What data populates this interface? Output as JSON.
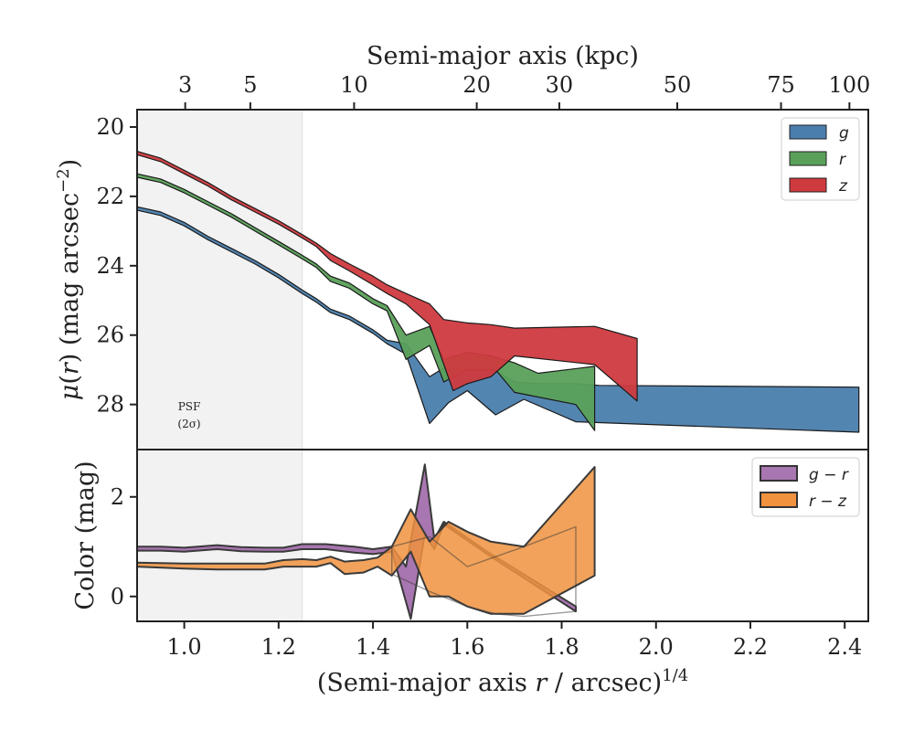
{
  "chart_data": [
    {
      "type": "area",
      "panel": "surface-brightness",
      "ylabel": "μ(r) (mag arcsec⁻²)",
      "ylabel_parts": {
        "sym": "μ",
        "mid": "(",
        "var": "r",
        "rest": ") (mag arcsec",
        "sup": "−2",
        "end": ")"
      },
      "xlim": [
        0.9,
        2.45
      ],
      "ylim": [
        29.3,
        19.5
      ],
      "y_inverted": true,
      "yticks": [
        20,
        22,
        24,
        26,
        28
      ],
      "top_xlabel": "Semi-major axis (kpc)",
      "top_xticks": [
        {
          "label": "3",
          "x": 1.002
        },
        {
          "label": "5",
          "x": 1.14
        },
        {
          "label": "10",
          "x": 1.36
        },
        {
          "label": "20",
          "x": 1.62
        },
        {
          "label": "30",
          "x": 1.795
        },
        {
          "label": "50",
          "x": 2.045
        },
        {
          "label": "75",
          "x": 2.265
        },
        {
          "label": "100",
          "x": 2.41
        }
      ],
      "psf_region": [
        0.9,
        1.25
      ],
      "psf_label": [
        "PSF",
        "(2σ)"
      ],
      "legend_position": "upper-right",
      "series": [
        {
          "name": "g",
          "color": "#4a7ead",
          "upper": [
            [
              0.9,
              22.3
            ],
            [
              0.95,
              22.45
            ],
            [
              1.0,
              22.75
            ],
            [
              1.05,
              23.15
            ],
            [
              1.1,
              23.5
            ],
            [
              1.15,
              23.85
            ],
            [
              1.2,
              24.25
            ],
            [
              1.25,
              24.7
            ],
            [
              1.28,
              24.95
            ],
            [
              1.31,
              25.25
            ],
            [
              1.35,
              25.45
            ],
            [
              1.4,
              25.85
            ],
            [
              1.43,
              26.15
            ],
            [
              1.47,
              26.25
            ],
            [
              1.52,
              27.2
            ],
            [
              1.55,
              26.95
            ],
            [
              1.6,
              27.0
            ],
            [
              1.65,
              26.95
            ],
            [
              1.7,
              27.35
            ],
            [
              1.75,
              27.4
            ],
            [
              1.83,
              27.4
            ],
            [
              1.88,
              27.45
            ],
            [
              2.43,
              27.5
            ]
          ],
          "lower": [
            [
              0.9,
              22.4
            ],
            [
              0.95,
              22.55
            ],
            [
              1.0,
              22.85
            ],
            [
              1.05,
              23.25
            ],
            [
              1.1,
              23.6
            ],
            [
              1.15,
              23.95
            ],
            [
              1.2,
              24.35
            ],
            [
              1.25,
              24.8
            ],
            [
              1.28,
              25.05
            ],
            [
              1.31,
              25.35
            ],
            [
              1.35,
              25.55
            ],
            [
              1.4,
              25.95
            ],
            [
              1.43,
              26.25
            ],
            [
              1.47,
              26.55
            ],
            [
              1.52,
              28.55
            ],
            [
              1.56,
              27.95
            ],
            [
              1.6,
              27.6
            ],
            [
              1.66,
              28.3
            ],
            [
              1.72,
              27.85
            ],
            [
              1.83,
              28.5
            ],
            [
              2.43,
              28.8
            ]
          ]
        },
        {
          "name": "r",
          "color": "#5aa05a",
          "upper": [
            [
              0.9,
              21.35
            ],
            [
              0.95,
              21.5
            ],
            [
              1.0,
              21.8
            ],
            [
              1.05,
              22.15
            ],
            [
              1.1,
              22.5
            ],
            [
              1.15,
              22.9
            ],
            [
              1.2,
              23.3
            ],
            [
              1.25,
              23.7
            ],
            [
              1.28,
              23.95
            ],
            [
              1.31,
              24.3
            ],
            [
              1.35,
              24.5
            ],
            [
              1.4,
              24.95
            ],
            [
              1.43,
              25.15
            ],
            [
              1.47,
              26.0
            ],
            [
              1.52,
              25.75
            ],
            [
              1.55,
              26.7
            ],
            [
              1.6,
              26.5
            ],
            [
              1.65,
              26.6
            ],
            [
              1.7,
              26.8
            ],
            [
              1.75,
              27.1
            ],
            [
              1.87,
              26.9
            ]
          ],
          "lower": [
            [
              0.9,
              21.45
            ],
            [
              0.95,
              21.6
            ],
            [
              1.0,
              21.9
            ],
            [
              1.05,
              22.25
            ],
            [
              1.1,
              22.6
            ],
            [
              1.15,
              23.0
            ],
            [
              1.2,
              23.4
            ],
            [
              1.25,
              23.8
            ],
            [
              1.28,
              24.05
            ],
            [
              1.31,
              24.45
            ],
            [
              1.35,
              24.65
            ],
            [
              1.4,
              25.1
            ],
            [
              1.43,
              25.3
            ],
            [
              1.47,
              26.7
            ],
            [
              1.52,
              26.3
            ],
            [
              1.55,
              27.35
            ],
            [
              1.6,
              27.0
            ],
            [
              1.66,
              27.0
            ],
            [
              1.7,
              27.65
            ],
            [
              1.83,
              28.0
            ],
            [
              1.87,
              28.75
            ]
          ]
        },
        {
          "name": "z",
          "color": "#cf3a3f",
          "upper": [
            [
              0.9,
              20.7
            ],
            [
              0.95,
              20.9
            ],
            [
              1.0,
              21.25
            ],
            [
              1.05,
              21.6
            ],
            [
              1.1,
              22.0
            ],
            [
              1.15,
              22.35
            ],
            [
              1.2,
              22.7
            ],
            [
              1.25,
              23.1
            ],
            [
              1.28,
              23.35
            ],
            [
              1.31,
              23.65
            ],
            [
              1.35,
              23.95
            ],
            [
              1.4,
              24.3
            ],
            [
              1.43,
              24.55
            ],
            [
              1.47,
              24.8
            ],
            [
              1.52,
              25.1
            ],
            [
              1.55,
              25.55
            ],
            [
              1.6,
              25.65
            ],
            [
              1.65,
              25.7
            ],
            [
              1.7,
              25.8
            ],
            [
              1.87,
              25.75
            ],
            [
              1.96,
              26.1
            ]
          ],
          "lower": [
            [
              0.9,
              20.8
            ],
            [
              0.95,
              21.0
            ],
            [
              1.0,
              21.35
            ],
            [
              1.05,
              21.7
            ],
            [
              1.1,
              22.1
            ],
            [
              1.15,
              22.45
            ],
            [
              1.2,
              22.8
            ],
            [
              1.25,
              23.2
            ],
            [
              1.28,
              23.45
            ],
            [
              1.31,
              23.85
            ],
            [
              1.35,
              24.15
            ],
            [
              1.4,
              24.55
            ],
            [
              1.43,
              24.8
            ],
            [
              1.47,
              25.1
            ],
            [
              1.52,
              25.7
            ],
            [
              1.57,
              27.6
            ],
            [
              1.6,
              27.4
            ],
            [
              1.65,
              27.2
            ],
            [
              1.7,
              26.6
            ],
            [
              1.87,
              26.85
            ],
            [
              1.96,
              27.9
            ]
          ]
        }
      ]
    },
    {
      "type": "area",
      "panel": "color-profile",
      "xlabel_parts": {
        "pre": "(Semi-major axis ",
        "var": "r",
        "post": " / arcsec)",
        "sup": "1/4"
      },
      "ylabel": "Color (mag)",
      "xlim": [
        0.9,
        2.45
      ],
      "xticks": [
        1.0,
        1.2,
        1.4,
        1.6,
        1.8,
        2.0,
        2.2,
        2.4
      ],
      "xtick_labels": [
        "1.0",
        "1.2",
        "1.4",
        "1.6",
        "1.8",
        "2.0",
        "2.2",
        "2.4"
      ],
      "ylim": [
        -0.5,
        2.95
      ],
      "yticks": [
        0,
        2
      ],
      "ytick_labels": [
        "0",
        "2"
      ],
      "legend_position": "upper-right",
      "series": [
        {
          "name": "g − r",
          "color": "#a876b0",
          "upper": [
            [
              0.9,
              1.0
            ],
            [
              0.95,
              1.0
            ],
            [
              1.0,
              0.98
            ],
            [
              1.07,
              1.03
            ],
            [
              1.12,
              0.99
            ],
            [
              1.17,
              0.98
            ],
            [
              1.21,
              0.98
            ],
            [
              1.25,
              1.05
            ],
            [
              1.3,
              1.05
            ],
            [
              1.36,
              1.0
            ],
            [
              1.4,
              0.95
            ],
            [
              1.44,
              1.0
            ],
            [
              1.47,
              0.6
            ],
            [
              1.51,
              2.65
            ],
            [
              1.53,
              1.15
            ],
            [
              1.55,
              1.5
            ],
            [
              1.65,
              0.85
            ],
            [
              1.83,
              -0.2
            ]
          ],
          "lower": [
            [
              0.9,
              0.92
            ],
            [
              0.95,
              0.92
            ],
            [
              1.0,
              0.9
            ],
            [
              1.07,
              0.95
            ],
            [
              1.12,
              0.91
            ],
            [
              1.17,
              0.9
            ],
            [
              1.21,
              0.9
            ],
            [
              1.25,
              0.95
            ],
            [
              1.3,
              0.95
            ],
            [
              1.36,
              0.88
            ],
            [
              1.4,
              0.85
            ],
            [
              1.44,
              0.9
            ],
            [
              1.48,
              -0.45
            ],
            [
              1.51,
              1.25
            ],
            [
              1.53,
              0.95
            ],
            [
              1.55,
              1.45
            ],
            [
              1.65,
              0.8
            ],
            [
              1.83,
              -0.3
            ]
          ]
        },
        {
          "name": "r − z",
          "color": "#f0923e",
          "upper": [
            [
              0.9,
              0.68
            ],
            [
              1.0,
              0.66
            ],
            [
              1.07,
              0.66
            ],
            [
              1.12,
              0.66
            ],
            [
              1.17,
              0.66
            ],
            [
              1.21,
              0.73
            ],
            [
              1.25,
              0.75
            ],
            [
              1.28,
              0.73
            ],
            [
              1.31,
              0.8
            ],
            [
              1.34,
              0.7
            ],
            [
              1.38,
              0.73
            ],
            [
              1.41,
              0.78
            ],
            [
              1.44,
              1.0
            ],
            [
              1.48,
              1.75
            ],
            [
              1.52,
              1.1
            ],
            [
              1.56,
              1.5
            ],
            [
              1.6,
              1.3
            ],
            [
              1.65,
              1.1
            ],
            [
              1.72,
              1.0
            ],
            [
              1.87,
              2.6
            ]
          ],
          "lower": [
            [
              0.9,
              0.6
            ],
            [
              1.0,
              0.56
            ],
            [
              1.07,
              0.54
            ],
            [
              1.12,
              0.54
            ],
            [
              1.17,
              0.54
            ],
            [
              1.21,
              0.6
            ],
            [
              1.25,
              0.6
            ],
            [
              1.28,
              0.6
            ],
            [
              1.31,
              0.67
            ],
            [
              1.34,
              0.45
            ],
            [
              1.38,
              0.48
            ],
            [
              1.41,
              0.6
            ],
            [
              1.44,
              0.42
            ],
            [
              1.48,
              0.9
            ],
            [
              1.52,
              0.0
            ],
            [
              1.56,
              0.0
            ],
            [
              1.6,
              -0.2
            ],
            [
              1.65,
              -0.35
            ],
            [
              1.72,
              -0.35
            ],
            [
              1.87,
              0.42
            ]
          ]
        },
        {
          "name": "r − z (outline)",
          "role": "outline",
          "color": "#f0923e",
          "upper": [
            [
              1.44,
              1.0
            ],
            [
              1.52,
              1.2
            ],
            [
              1.6,
              0.6
            ],
            [
              1.66,
              0.8
            ],
            [
              1.72,
              1.0
            ],
            [
              1.83,
              1.4
            ]
          ],
          "lower": [
            [
              1.44,
              0.45
            ],
            [
              1.52,
              0.1
            ],
            [
              1.6,
              -0.2
            ],
            [
              1.66,
              -0.35
            ],
            [
              1.72,
              -0.4
            ],
            [
              1.83,
              -0.3
            ]
          ]
        }
      ]
    }
  ]
}
